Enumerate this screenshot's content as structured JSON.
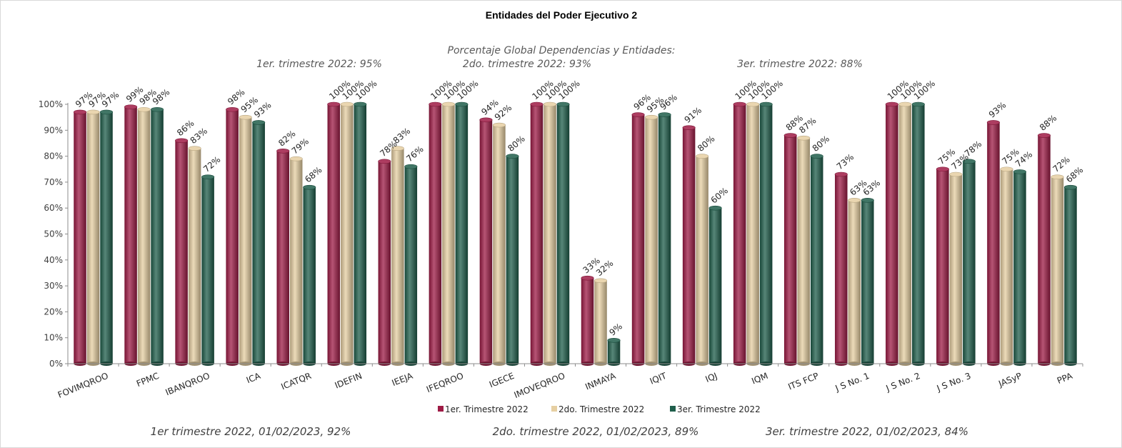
{
  "chart_data": {
    "type": "bar",
    "title": "Entidades del Poder Ejecutivo 2",
    "annotations": {
      "global_header": "Porcentaje Global  Dependencias y Entidades:",
      "q1": "1er. trimestre 2022: 95%",
      "q2": "2do. trimestre 2022: 93%",
      "q3": "3er. trimestre 2022: 88%"
    },
    "footnotes": [
      "1er trimestre  2022,  01/02/2023, 92%",
      "2do. trimestre 2022, 01/02/2023, 89%",
      "3er. trimestre 2022, 01/02/2023, 84%"
    ],
    "categories": [
      "FOVIMQROO",
      "FPMC",
      "IBANQROO",
      "ICA",
      "ICATQR",
      "IDEFIN",
      "IEEJA",
      "IFEQROO",
      "IGECE",
      "IMOVEQROO",
      "INMAYA",
      "IQIT",
      "IQJ",
      "IQM",
      "ITS FCP",
      "J S No. 1",
      "J S No. 2",
      "J S No. 3",
      "JASyP",
      "PPA"
    ],
    "series": [
      {
        "name": "1er. Trimestre 2022",
        "color": "#9e1b45",
        "values": [
          97,
          99,
          86,
          98,
          82,
          100,
          78,
          100,
          94,
          100,
          33,
          96,
          91,
          100,
          88,
          73,
          100,
          75,
          93,
          88
        ]
      },
      {
        "name": "2do. Trimestre 2022",
        "color": "#e6cfa2",
        "values": [
          97,
          98,
          83,
          95,
          79,
          100,
          83,
          100,
          92,
          100,
          32,
          95,
          80,
          100,
          87,
          63,
          100,
          73,
          75,
          72
        ]
      },
      {
        "name": "3er. Trimestre 2022",
        "color": "#1f5e4b",
        "values": [
          97,
          98,
          72,
          93,
          68,
          100,
          76,
          100,
          80,
          100,
          9,
          96,
          60,
          100,
          80,
          63,
          100,
          78,
          74,
          68
        ]
      }
    ],
    "ylim": [
      0,
      100
    ],
    "yticks": [
      "0%",
      "10%",
      "20%",
      "30%",
      "40%",
      "50%",
      "60%",
      "70%",
      "80%",
      "90%",
      "100%"
    ],
    "legend_position": "bottom",
    "grid": false
  }
}
